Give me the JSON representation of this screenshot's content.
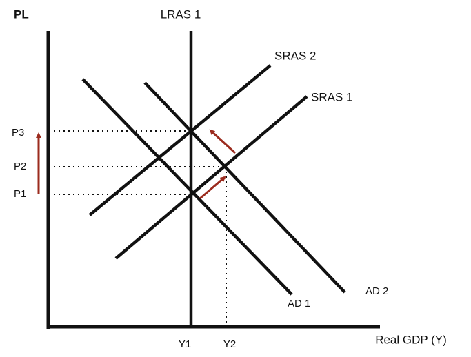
{
  "axes": {
    "y_label": "PL",
    "x_label": "Real GDP (Y)"
  },
  "curves": {
    "lras": "LRAS 1",
    "sras2": "SRAS 2",
    "sras1": "SRAS 1",
    "ad2": "AD 2",
    "ad1": "AD 1"
  },
  "price_levels": [
    "P3",
    "P2",
    "P1"
  ],
  "outputs": [
    "Y1",
    "Y2"
  ]
}
